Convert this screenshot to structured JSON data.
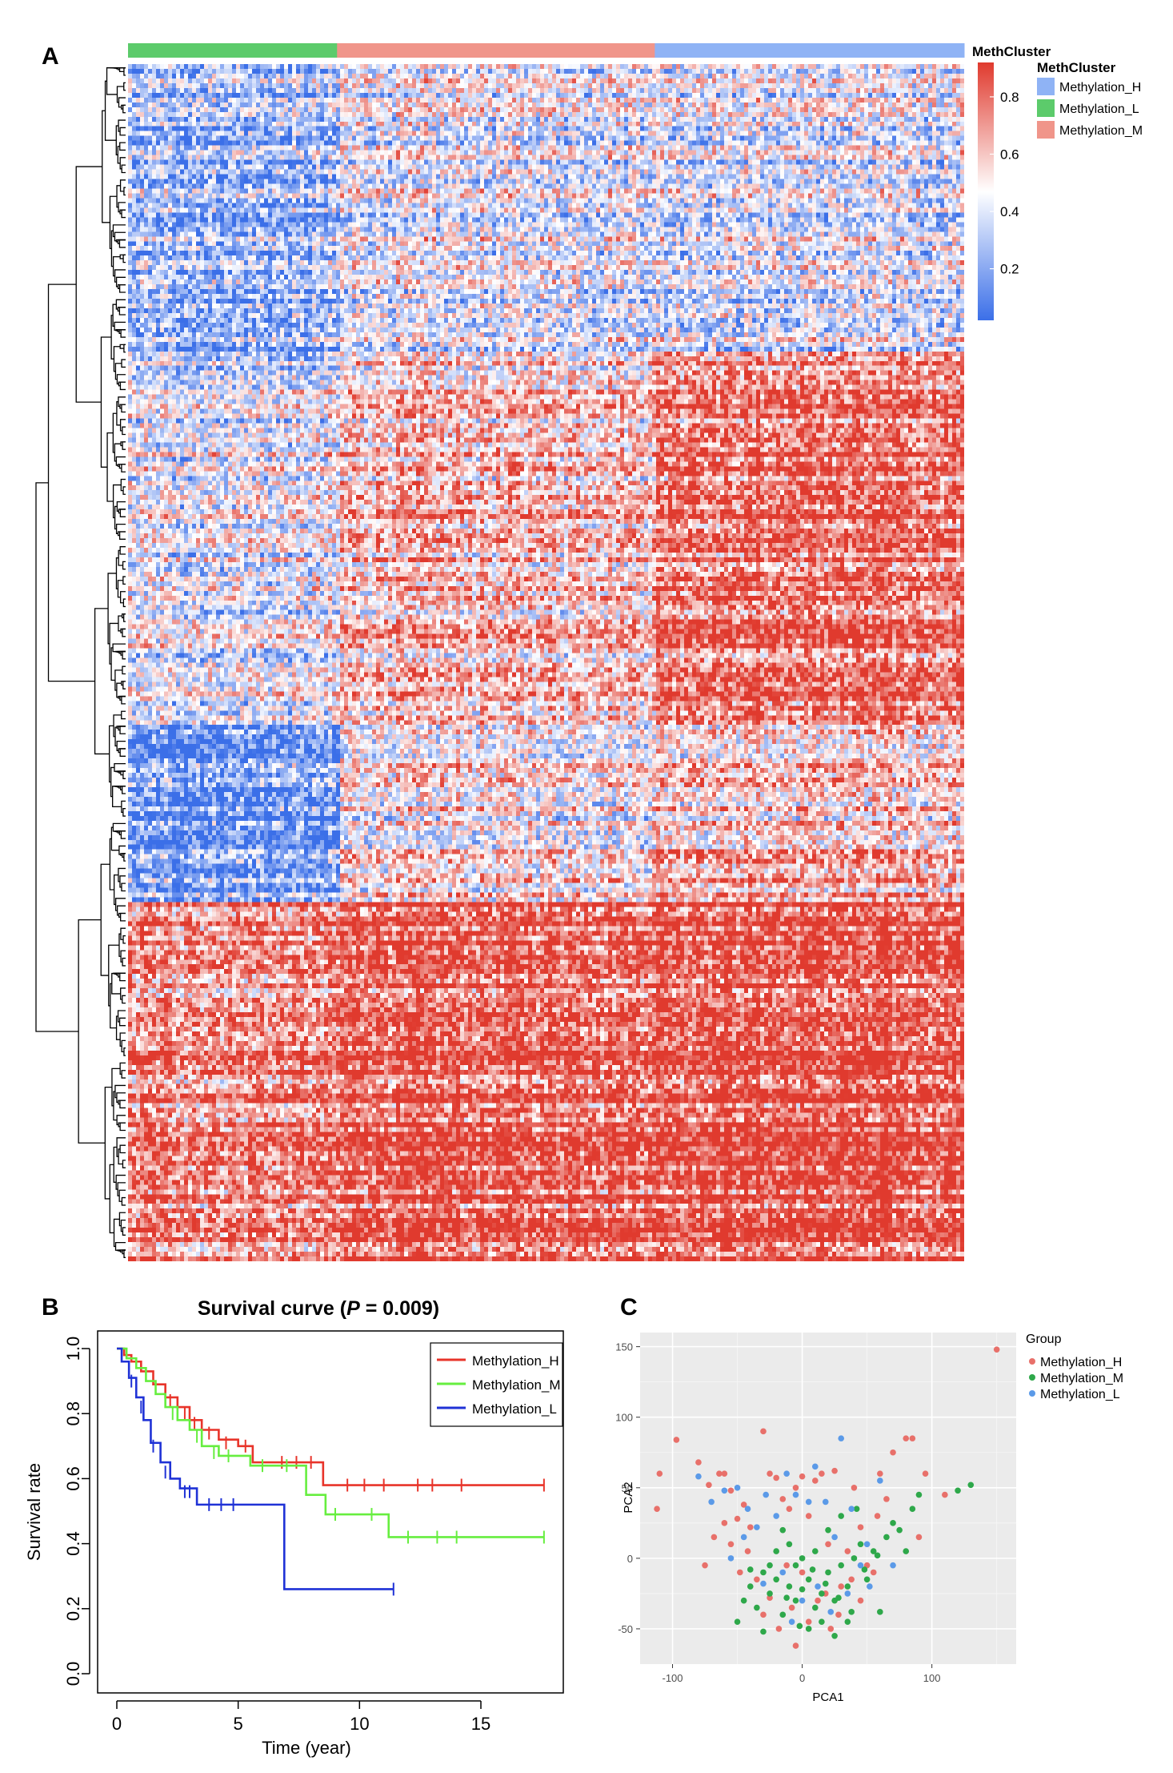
{
  "panels": {
    "a": "A",
    "b": "B",
    "c": "C"
  },
  "chart_data": [
    {
      "type": "heatmap",
      "annotation_title": "MethCluster",
      "legend_title": "MethCluster",
      "column_groups": [
        {
          "name": "Methylation_L",
          "color": "#5CCB6B",
          "fraction": 0.25
        },
        {
          "name": "Methylation_M",
          "color": "#F0958A",
          "fraction": 0.38
        },
        {
          "name": "Methylation_H",
          "color": "#8FB3F5",
          "fraction": 0.37
        }
      ],
      "legend_entries": [
        {
          "name": "Methylation_H",
          "color": "#8FB3F5"
        },
        {
          "name": "Methylation_L",
          "color": "#5CCB6B"
        },
        {
          "name": "Methylation_M",
          "color": "#F0958A"
        }
      ],
      "colorbar": {
        "ticks": [
          "0.8",
          "0.6",
          "0.4",
          "0.2"
        ],
        "tick_values": [
          0.8,
          0.6,
          0.4,
          0.2
        ],
        "range": [
          0.02,
          0.92
        ],
        "low_color": "#3B6FE8",
        "mid_color": "#FFFFFF",
        "high_color": "#E03A2E"
      },
      "row_blocks": [
        {
          "start": 0.0,
          "end": 0.24,
          "means": [
            0.25,
            0.42,
            0.4
          ]
        },
        {
          "start": 0.24,
          "end": 0.55,
          "means": [
            0.42,
            0.6,
            0.78
          ]
        },
        {
          "start": 0.55,
          "end": 0.63,
          "means": [
            0.15,
            0.5,
            0.58
          ]
        },
        {
          "start": 0.63,
          "end": 0.7,
          "means": [
            0.2,
            0.55,
            0.65
          ]
        },
        {
          "start": 0.7,
          "end": 1.0,
          "means": [
            0.72,
            0.82,
            0.85
          ]
        }
      ]
    },
    {
      "type": "line",
      "title_prefix": "Survival curve (",
      "title_p": "P",
      "title_suffix": " = 0.009)",
      "xlabel": "Time (year)",
      "ylabel": "Survival rate",
      "xlim": [
        0,
        18
      ],
      "ylim": [
        0,
        1.0
      ],
      "xticks": [
        0,
        5,
        10,
        15
      ],
      "yticks": [
        0.0,
        0.2,
        0.4,
        0.6,
        0.8,
        1.0
      ],
      "legend_position": "top-right",
      "series": [
        {
          "name": "Methylation_H",
          "color": "#E8342A",
          "x": [
            0,
            0.3,
            0.6,
            1.0,
            1.5,
            2.0,
            2.5,
            3.0,
            3.5,
            4.2,
            5.0,
            5.6,
            6.5,
            8.3,
            8.5,
            17.6
          ],
          "y": [
            1.0,
            0.98,
            0.96,
            0.93,
            0.89,
            0.85,
            0.82,
            0.78,
            0.75,
            0.72,
            0.7,
            0.65,
            0.65,
            0.65,
            0.58,
            0.58
          ],
          "censor_x": [
            2.2,
            2.8,
            3.2,
            3.8,
            4.5,
            5.3,
            6.8,
            7.4,
            8.0,
            9.5,
            10.2,
            11.0,
            12.4,
            13.0,
            14.2,
            17.6
          ],
          "censor_y": [
            0.84,
            0.8,
            0.77,
            0.74,
            0.71,
            0.7,
            0.65,
            0.65,
            0.65,
            0.58,
            0.58,
            0.58,
            0.58,
            0.58,
            0.58,
            0.58
          ]
        },
        {
          "name": "Methylation_M",
          "color": "#66EE3F",
          "x": [
            0,
            0.4,
            0.8,
            1.2,
            1.6,
            2.0,
            2.5,
            3.0,
            3.5,
            4.2,
            5.5,
            7.8,
            8.6,
            11.2,
            17.6
          ],
          "y": [
            1.0,
            0.97,
            0.94,
            0.9,
            0.86,
            0.82,
            0.78,
            0.75,
            0.7,
            0.67,
            0.64,
            0.55,
            0.49,
            0.42,
            0.42
          ],
          "censor_x": [
            2.3,
            3.3,
            4.0,
            4.6,
            6.0,
            7.0,
            9.0,
            10.5,
            12.0,
            13.2,
            14.0,
            17.6
          ],
          "censor_y": [
            0.8,
            0.73,
            0.68,
            0.67,
            0.64,
            0.64,
            0.49,
            0.49,
            0.42,
            0.42,
            0.42,
            0.42
          ]
        },
        {
          "name": "Methylation_L",
          "color": "#1F32D6",
          "x": [
            0,
            0.2,
            0.5,
            0.8,
            1.1,
            1.4,
            1.8,
            2.2,
            2.6,
            3.3,
            5.2,
            6.9,
            11.4
          ],
          "y": [
            1.0,
            0.96,
            0.91,
            0.85,
            0.78,
            0.71,
            0.65,
            0.6,
            0.57,
            0.52,
            0.52,
            0.26,
            0.26
          ],
          "censor_x": [
            0.6,
            1.0,
            1.5,
            2.0,
            2.8,
            3.0,
            3.8,
            4.3,
            4.8,
            11.4
          ],
          "censor_y": [
            0.9,
            0.82,
            0.7,
            0.62,
            0.56,
            0.56,
            0.52,
            0.52,
            0.52,
            0.26
          ]
        }
      ]
    },
    {
      "type": "scatter",
      "xlabel": "PCA1",
      "ylabel": "PCA2",
      "xlim": [
        -125,
        165
      ],
      "ylim": [
        -75,
        160
      ],
      "xticks": [
        -100,
        0,
        100
      ],
      "yticks": [
        -50,
        0,
        50,
        100,
        150
      ],
      "legend_title": "Group",
      "legend_position": "right",
      "series": [
        {
          "name": "Methylation_H",
          "color": "#E8706A",
          "points": [
            [
              -110,
              60
            ],
            [
              -112,
              35
            ],
            [
              -97,
              84
            ],
            [
              -80,
              68
            ],
            [
              -72,
              52
            ],
            [
              -64,
              60
            ],
            [
              -60,
              60
            ],
            [
              -55,
              48
            ],
            [
              -50,
              28
            ],
            [
              -45,
              38
            ],
            [
              -40,
              22
            ],
            [
              -30,
              90
            ],
            [
              -25,
              60
            ],
            [
              -20,
              57
            ],
            [
              -15,
              42
            ],
            [
              -10,
              35
            ],
            [
              -5,
              50
            ],
            [
              0,
              58
            ],
            [
              5,
              30
            ],
            [
              10,
              55
            ],
            [
              15,
              60
            ],
            [
              20,
              10
            ],
            [
              25,
              62
            ],
            [
              30,
              -20
            ],
            [
              35,
              5
            ],
            [
              40,
              50
            ],
            [
              45,
              22
            ],
            [
              50,
              -5
            ],
            [
              55,
              -10
            ],
            [
              60,
              60
            ],
            [
              65,
              42
            ],
            [
              70,
              75
            ],
            [
              80,
              85
            ],
            [
              85,
              85
            ],
            [
              90,
              15
            ],
            [
              95,
              60
            ],
            [
              110,
              45
            ],
            [
              150,
              148
            ],
            [
              -55,
              10
            ],
            [
              -60,
              25
            ],
            [
              -35,
              -15
            ],
            [
              -30,
              -40
            ],
            [
              -25,
              -28
            ],
            [
              -18,
              -50
            ],
            [
              -8,
              -35
            ],
            [
              0,
              -10
            ],
            [
              5,
              -45
            ],
            [
              12,
              -30
            ],
            [
              18,
              -25
            ],
            [
              22,
              -50
            ],
            [
              -5,
              -62
            ],
            [
              -12,
              -5
            ],
            [
              -42,
              5
            ],
            [
              -48,
              -10
            ],
            [
              -68,
              15
            ],
            [
              -75,
              -5
            ],
            [
              28,
              -40
            ],
            [
              38,
              -15
            ],
            [
              45,
              -30
            ],
            [
              58,
              30
            ]
          ]
        },
        {
          "name": "Methylation_M",
          "color": "#2EA84A",
          "points": [
            [
              -50,
              -45
            ],
            [
              -45,
              -30
            ],
            [
              -40,
              -20
            ],
            [
              -35,
              -35
            ],
            [
              -30,
              -10
            ],
            [
              -25,
              -25
            ],
            [
              -20,
              -15
            ],
            [
              -15,
              -40
            ],
            [
              -10,
              -20
            ],
            [
              -5,
              -30
            ],
            [
              0,
              -22
            ],
            [
              5,
              -15
            ],
            [
              10,
              -35
            ],
            [
              15,
              -25
            ],
            [
              20,
              -10
            ],
            [
              25,
              -30
            ],
            [
              30,
              -5
            ],
            [
              35,
              -20
            ],
            [
              40,
              0
            ],
            [
              45,
              10
            ],
            [
              50,
              -15
            ],
            [
              55,
              5
            ],
            [
              60,
              -38
            ],
            [
              65,
              15
            ],
            [
              70,
              25
            ],
            [
              75,
              20
            ],
            [
              80,
              5
            ],
            [
              85,
              35
            ],
            [
              90,
              45
            ],
            [
              130,
              52
            ],
            [
              120,
              48
            ],
            [
              -20,
              5
            ],
            [
              -10,
              10
            ],
            [
              0,
              0
            ],
            [
              5,
              -50
            ],
            [
              -30,
              -52
            ],
            [
              15,
              -45
            ],
            [
              25,
              -55
            ],
            [
              35,
              -45
            ],
            [
              -5,
              -5
            ],
            [
              10,
              5
            ],
            [
              20,
              20
            ],
            [
              30,
              30
            ],
            [
              42,
              35
            ],
            [
              -15,
              20
            ],
            [
              -25,
              -5
            ],
            [
              -2,
              -48
            ],
            [
              8,
              -8
            ],
            [
              18,
              -18
            ],
            [
              28,
              -28
            ],
            [
              38,
              -38
            ],
            [
              48,
              -8
            ],
            [
              58,
              2
            ],
            [
              -40,
              -8
            ],
            [
              -12,
              -28
            ]
          ]
        },
        {
          "name": "Methylation_L",
          "color": "#5B9AE8",
          "points": [
            [
              -80,
              58
            ],
            [
              -70,
              40
            ],
            [
              -60,
              48
            ],
            [
              -50,
              50
            ],
            [
              -42,
              35
            ],
            [
              -35,
              22
            ],
            [
              -28,
              45
            ],
            [
              -20,
              30
            ],
            [
              -12,
              60
            ],
            [
              -5,
              45
            ],
            [
              5,
              40
            ],
            [
              10,
              65
            ],
            [
              18,
              40
            ],
            [
              25,
              15
            ],
            [
              30,
              85
            ],
            [
              38,
              35
            ],
            [
              45,
              -5
            ],
            [
              50,
              10
            ],
            [
              60,
              55
            ],
            [
              70,
              -5
            ],
            [
              -30,
              -18
            ],
            [
              -15,
              -10
            ],
            [
              0,
              -30
            ],
            [
              12,
              -20
            ],
            [
              22,
              -38
            ],
            [
              -8,
              -45
            ],
            [
              -55,
              0
            ],
            [
              -45,
              15
            ],
            [
              35,
              -25
            ],
            [
              52,
              -20
            ]
          ]
        }
      ]
    }
  ]
}
